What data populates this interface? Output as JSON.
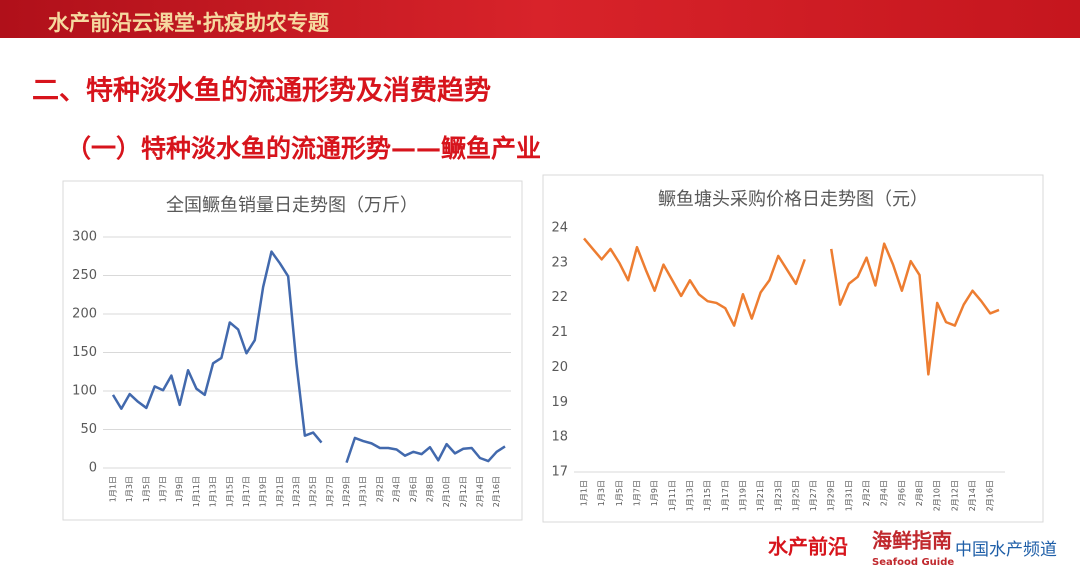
{
  "header": {
    "banner": "水产前沿云课堂·抗疫助农专题",
    "title": "二、特种淡水鱼的流通形势及消费趋势",
    "subtitle": "（一）特种淡水鱼的流通形势——鳜鱼产业"
  },
  "footer": {
    "logo1": "水产前沿",
    "logo2": "海鲜指南",
    "logo2_sub": "Seafood Guide",
    "logo3": "中国水产频道"
  },
  "chart_data": [
    {
      "type": "line",
      "title": "全国鳜鱼销量日走势图（万斤）",
      "grid": true,
      "categories": [
        "1月1日",
        null,
        "1月3日",
        null,
        "1月5日",
        null,
        "1月7日",
        null,
        "1月9日",
        null,
        "1月11日",
        null,
        "1月13日",
        null,
        "1月15日",
        null,
        "1月17日",
        null,
        "1月19日",
        null,
        "1月21日",
        null,
        "1月23日",
        null,
        "1月25日",
        null,
        "1月27日",
        null,
        "1月29日",
        null,
        "1月31日",
        null,
        "2月2日",
        null,
        "2月4日",
        null,
        "2月6日",
        null,
        "2月8日",
        null,
        "2月10日",
        null,
        "2月12日",
        null,
        "2月14日",
        null,
        "2月16日",
        null
      ],
      "series": [
        {
          "color": "#4269ad",
          "values": [
            95,
            77,
            96,
            86,
            78,
            106,
            101,
            120,
            82,
            127,
            103,
            95,
            136,
            143,
            189,
            180,
            149,
            166,
            235,
            281,
            266,
            249,
            135,
            42,
            46,
            33,
            null,
            null,
            7,
            39,
            35,
            32,
            26,
            26,
            24,
            16,
            21,
            18,
            27,
            10,
            31,
            19,
            25,
            26,
            13,
            9,
            21,
            28
          ]
        }
      ],
      "ylim": [
        0,
        300
      ],
      "yticks": [
        0,
        50,
        100,
        150,
        200,
        250,
        300
      ]
    },
    {
      "type": "line",
      "title": "鳜鱼塘头采购价格日走势图（元）",
      "grid": false,
      "categories": [
        "1月1日",
        null,
        "1月3日",
        null,
        "1月5日",
        null,
        "1月7日",
        null,
        "1月9日",
        null,
        "1月11日",
        null,
        "1月13日",
        null,
        "1月15日",
        null,
        "1月17日",
        null,
        "1月19日",
        null,
        "1月21日",
        null,
        "1月23日",
        null,
        "1月25日",
        null,
        "1月27日",
        null,
        "1月29日",
        null,
        "1月31日",
        null,
        "2月2日",
        null,
        "2月4日",
        null,
        "2月6日",
        null,
        "2月8日",
        null,
        "2月10日",
        null,
        "2月12日",
        null,
        "2月14日",
        null,
        "2月16日",
        null
      ],
      "series": [
        {
          "color": "#ed7d31",
          "values": [
            23.7,
            23.4,
            23.1,
            23.4,
            23.0,
            22.5,
            23.45,
            22.8,
            22.2,
            22.95,
            22.5,
            22.05,
            22.5,
            22.1,
            21.9,
            21.85,
            21.7,
            21.2,
            22.1,
            21.4,
            22.15,
            22.5,
            23.2,
            22.8,
            22.4,
            23.1,
            null,
            null,
            23.4,
            21.8,
            22.4,
            22.6,
            23.15,
            22.35,
            23.55,
            22.95,
            22.2,
            23.05,
            22.65,
            19.8,
            21.85,
            21.3,
            21.2,
            21.8,
            22.2,
            21.9,
            21.55,
            21.65
          ]
        }
      ],
      "ylim": [
        17,
        24
      ],
      "yticks": [
        17,
        18,
        19,
        20,
        21,
        22,
        23,
        24
      ]
    }
  ]
}
